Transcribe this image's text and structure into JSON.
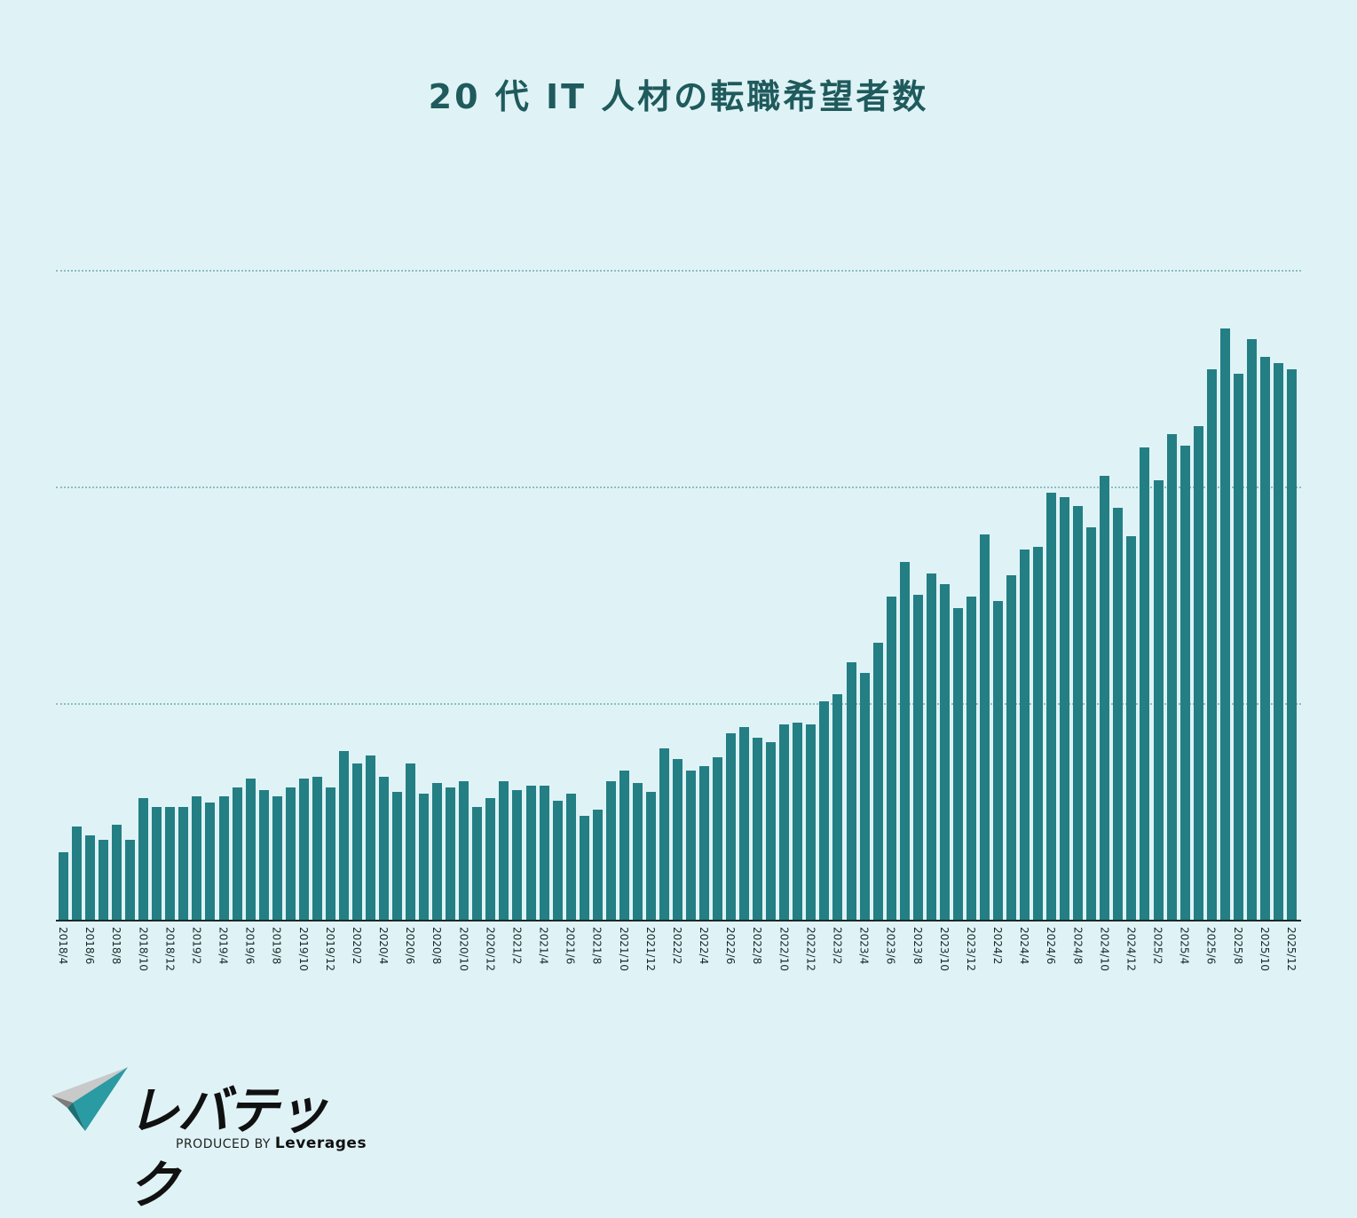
{
  "header": {
    "title": "20 代 IT 人材の転職希望者数"
  },
  "brand": {
    "name": "レバテック",
    "produced_by": "PRODUCED BY",
    "company": "Leverages",
    "colors": {
      "teal": "#2a9aa3",
      "gray": "#b8b8b8",
      "dark": "#1f5a5c"
    }
  },
  "chart_data": {
    "type": "bar",
    "title": "20 代 IT 人材の転職希望者数",
    "xlabel": "",
    "ylabel": "",
    "y_axis_labels_shown": false,
    "y_units": "relative index (first dotted gridline = 100)",
    "gridlines": [
      100,
      200,
      300
    ],
    "ylim": [
      0,
      350
    ],
    "grid": true,
    "bar_color": "#237f83",
    "background": "#dff3f7",
    "tick_labels": [
      "2018/4",
      "2018/6",
      "2018/8",
      "2018/10",
      "2018/12",
      "2019/2",
      "2019/4",
      "2019/6",
      "2019/8",
      "2019/10",
      "2019/12",
      "2020/2",
      "2020/4",
      "2020/6",
      "2020/8",
      "2020/10",
      "2020/12",
      "2021/2",
      "2021/4",
      "2021/6",
      "2021/8",
      "2021/10",
      "2021/12",
      "2022/2",
      "2022/4",
      "2022/6",
      "2022/8",
      "2022/10",
      "2022/12",
      "2023/2",
      "2023/4",
      "2023/6",
      "2023/8",
      "2023/10",
      "2023/12",
      "2024/2",
      "2024/4",
      "2024/6",
      "2024/8",
      "2024/10",
      "2024/12",
      "2025/2",
      "2025/4",
      "2025/6",
      "2025/8",
      "2025/10",
      "2025/12"
    ],
    "categories": [
      "2018/4",
      "2018/5",
      "2018/6",
      "2018/7",
      "2018/8",
      "2018/9",
      "2018/10",
      "2018/11",
      "2018/12",
      "2019/1",
      "2019/2",
      "2019/3",
      "2019/4",
      "2019/5",
      "2019/6",
      "2019/7",
      "2019/8",
      "2019/9",
      "2019/10",
      "2019/11",
      "2019/12",
      "2020/1",
      "2020/2",
      "2020/3",
      "2020/4",
      "2020/5",
      "2020/6",
      "2020/7",
      "2020/8",
      "2020/9",
      "2020/10",
      "2020/11",
      "2020/12",
      "2021/1",
      "2021/2",
      "2021/3",
      "2021/4",
      "2021/5",
      "2021/6",
      "2021/7",
      "2021/8",
      "2021/9",
      "2021/10",
      "2021/11",
      "2021/12",
      "2022/1",
      "2022/2",
      "2022/3",
      "2022/4",
      "2022/5",
      "2022/6",
      "2022/7",
      "2022/8",
      "2022/9",
      "2022/10",
      "2022/11",
      "2022/12",
      "2023/1",
      "2023/2",
      "2023/3",
      "2023/4",
      "2023/5",
      "2023/6",
      "2023/7",
      "2023/8",
      "2023/9",
      "2023/10",
      "2023/11",
      "2023/12",
      "2024/1",
      "2024/2",
      "2024/3",
      "2024/4",
      "2024/5",
      "2024/6",
      "2024/7",
      "2024/8",
      "2024/9",
      "2024/10",
      "2024/11",
      "2024/12",
      "2025/1",
      "2025/2",
      "2025/3",
      "2025/4",
      "2025/5",
      "2025/6",
      "2025/7",
      "2025/8",
      "2025/9",
      "2025/10",
      "2025/11",
      "2025/12"
    ],
    "values": [
      31,
      43,
      39,
      37,
      44,
      37,
      56,
      52,
      52,
      52,
      57,
      54,
      57,
      61,
      65,
      60,
      57,
      61,
      65,
      66,
      61,
      78,
      72,
      76,
      66,
      59,
      72,
      58,
      63,
      61,
      64,
      52,
      56,
      64,
      60,
      62,
      62,
      55,
      58,
      48,
      51,
      64,
      69,
      63,
      59,
      79,
      74,
      69,
      71,
      75,
      86,
      89,
      84,
      82,
      90,
      91,
      90,
      101,
      104,
      119,
      114,
      128,
      149,
      165,
      150,
      160,
      155,
      144,
      149,
      178,
      147,
      159,
      171,
      172,
      197,
      195,
      191,
      181,
      205,
      190,
      177,
      218,
      203,
      224,
      219,
      228,
      254,
      273,
      252,
      268,
      260,
      257,
      254
    ]
  }
}
